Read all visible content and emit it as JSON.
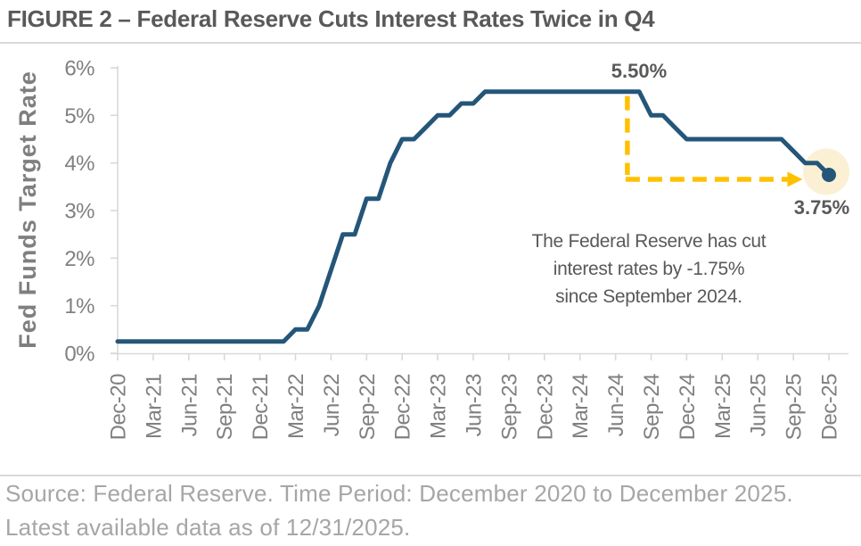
{
  "figure": {
    "title": "FIGURE 2 – Federal Reserve Cuts Interest Rates Twice in Q4"
  },
  "source": {
    "line1": "Source: Federal Reserve. Time Period: December 2020 to December 2025.",
    "line2": "Latest available data as of 12/31/2025."
  },
  "chart_data": {
    "type": "line",
    "step": true,
    "title": "FIGURE 2 – Federal Reserve Cuts Interest Rates Twice in Q4",
    "xlabel": "",
    "ylabel": "Fed Funds Target Rate",
    "ylim": [
      0,
      6
    ],
    "y_tick_labels": [
      "0%",
      "1%",
      "2%",
      "3%",
      "4%",
      "5%",
      "6%"
    ],
    "x_tick_labels": [
      "Dec-20",
      "Mar-21",
      "Jun-21",
      "Sep-21",
      "Dec-21",
      "Mar-22",
      "Jun-22",
      "Sep-22",
      "Dec-22",
      "Mar-23",
      "Jun-23",
      "Sep-23",
      "Dec-23",
      "Mar-24",
      "Jun-24",
      "Sep-24",
      "Dec-24",
      "Mar-25",
      "Jun-25",
      "Sep-25",
      "Dec-25"
    ],
    "legend": "none",
    "grid": false,
    "series": [
      {
        "name": "Fed Funds Target Rate",
        "color": "#245679",
        "rate_changes": [
          {
            "date": "Dec-20",
            "m": 0,
            "rate": 0.25
          },
          {
            "date": "Mar-22",
            "m": 15,
            "rate": 0.5
          },
          {
            "date": "May-22",
            "m": 17,
            "rate": 1.0
          },
          {
            "date": "Jun-22",
            "m": 18,
            "rate": 1.75
          },
          {
            "date": "Jul-22",
            "m": 19,
            "rate": 2.5
          },
          {
            "date": "Sep-22",
            "m": 21,
            "rate": 3.25
          },
          {
            "date": "Nov-22",
            "m": 23,
            "rate": 4.0
          },
          {
            "date": "Dec-22",
            "m": 24,
            "rate": 4.5
          },
          {
            "date": "Feb-23",
            "m": 26,
            "rate": 4.75
          },
          {
            "date": "Mar-23",
            "m": 27,
            "rate": 5.0
          },
          {
            "date": "May-23",
            "m": 29,
            "rate": 5.25
          },
          {
            "date": "Jul-23",
            "m": 31,
            "rate": 5.5
          },
          {
            "date": "Sep-24",
            "m": 45,
            "rate": 5.0
          },
          {
            "date": "Nov-24",
            "m": 47,
            "rate": 4.75
          },
          {
            "date": "Dec-24",
            "m": 48,
            "rate": 4.5
          },
          {
            "date": "Sep-25",
            "m": 57,
            "rate": 4.25
          },
          {
            "date": "Oct-25",
            "m": 58,
            "rate": 4.0
          },
          {
            "date": "Dec-25",
            "m": 60,
            "rate": 3.75
          }
        ]
      }
    ],
    "end_point": {
      "date": "Dec-25",
      "rate": 3.75
    },
    "annotations": {
      "peak_label": "5.50%",
      "end_label": "3.75%",
      "note_lines": [
        "The Federal Reserve has cut",
        "interest rates by -1.75%",
        "since September 2024."
      ],
      "arrow": {
        "vertical_at_month": 43,
        "from_rate": 5.5,
        "to_rate": 3.75,
        "end_month": 56.5
      }
    },
    "colors": {
      "line": "#245679",
      "arrow": "#ffc000",
      "halo": "#fbf0d3",
      "axis": "#d9d9d9",
      "tick_label": "#808080",
      "annotation_text": "#595959",
      "title_text": "#595959",
      "source_text": "#a6a6a6"
    }
  }
}
